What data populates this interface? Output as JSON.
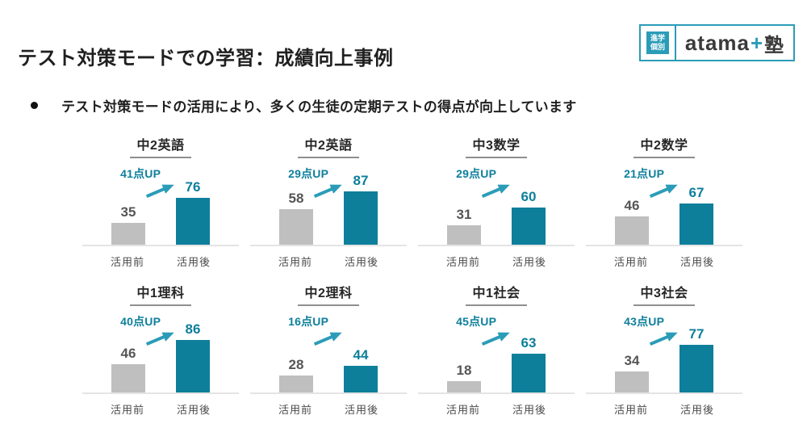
{
  "page": {
    "title": "テスト対策モードでの学習：成績向上事例",
    "bullet": "テスト対策モードの活用により、多くの生徒の定期テストの得点が向上しています"
  },
  "logo": {
    "badge_line1": "進学",
    "badge_line2": "個別",
    "name_main": "atama",
    "name_plus": "+",
    "name_suffix": "塾"
  },
  "colors": {
    "teal": "#0d7f9b",
    "teal_light": "#2b9cb8",
    "gray_bar": "#bfbfbf"
  },
  "chart_data": {
    "type": "bar",
    "categories": [
      "活用前",
      "活用後"
    ],
    "ylim": [
      0,
      100
    ],
    "unit": "点",
    "series_colors": {
      "before": "#bfbfbf",
      "after": "#0d7f9b"
    },
    "charts": [
      {
        "title": "中2英語",
        "before": 35,
        "after": 76,
        "up_label": "41点UP"
      },
      {
        "title": "中2英語",
        "before": 58,
        "after": 87,
        "up_label": "29点UP"
      },
      {
        "title": "中3数学",
        "before": 31,
        "after": 60,
        "up_label": "29点UP"
      },
      {
        "title": "中2数学",
        "before": 46,
        "after": 67,
        "up_label": "21点UP"
      },
      {
        "title": "中1理科",
        "before": 46,
        "after": 86,
        "up_label": "40点UP"
      },
      {
        "title": "中2理科",
        "before": 28,
        "after": 44,
        "up_label": "16点UP"
      },
      {
        "title": "中1社会",
        "before": 18,
        "after": 63,
        "up_label": "45点UP"
      },
      {
        "title": "中3社会",
        "before": 34,
        "after": 77,
        "up_label": "43点UP"
      }
    ]
  }
}
